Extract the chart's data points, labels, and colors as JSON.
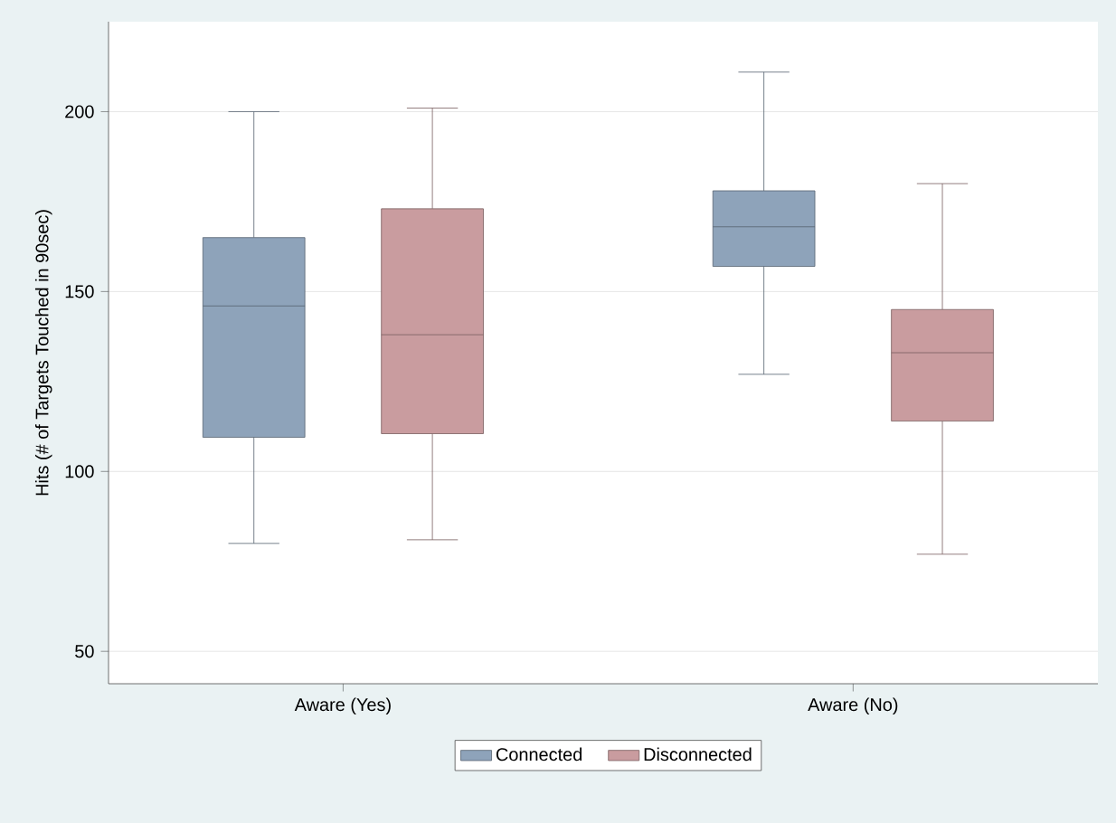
{
  "chart_data": {
    "type": "box",
    "ylabel": "Hits (# of Targets Touched in 90sec)",
    "categories": [
      "Aware (Yes)",
      "Aware (No)"
    ],
    "series": [
      {
        "name": "Connected",
        "color": "#8ea3ba",
        "boxes": [
          {
            "low": 80,
            "q1": 109.5,
            "median": 146,
            "q3": 165,
            "high": 200
          },
          {
            "low": 127,
            "q1": 157,
            "median": 168,
            "q3": 178,
            "high": 211
          }
        ]
      },
      {
        "name": "Disconnected",
        "color": "#c99c9f",
        "boxes": [
          {
            "low": 81,
            "q1": 110.5,
            "median": 138,
            "q3": 173,
            "high": 201
          },
          {
            "low": 77,
            "q1": 114,
            "median": 133,
            "q3": 145,
            "high": 180
          }
        ]
      }
    ],
    "ylim": [
      41,
      225
    ],
    "yticks": [
      50,
      100,
      150,
      200
    ],
    "grid": "y",
    "legend": "bottom"
  }
}
